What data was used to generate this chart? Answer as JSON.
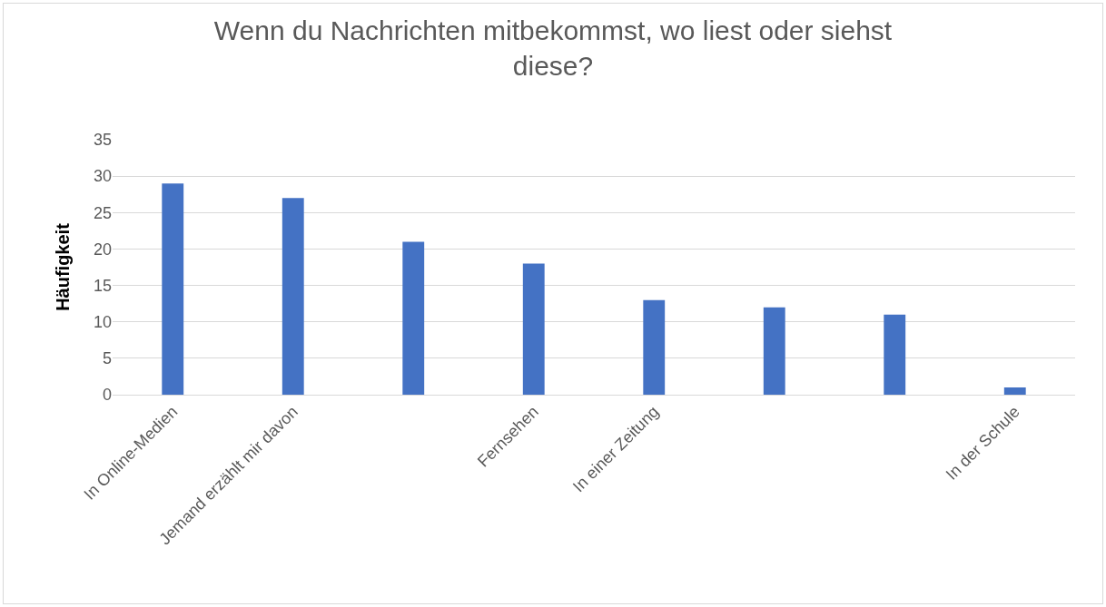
{
  "chart_data": {
    "type": "bar",
    "title": "Wenn du Nachrichten mitbekommst, wo liest oder siehst diese?",
    "ylabel": "Häufigkeit",
    "categories": [
      "In Online-Medien",
      "Jemand erzählt mir davon",
      null,
      "Fernsehen",
      "In einer Zeitung",
      null,
      null,
      "In der Schule"
    ],
    "values": [
      29,
      27,
      21,
      18,
      13,
      12,
      11,
      1
    ],
    "color": "#4472c4",
    "ylim": [
      0,
      35
    ],
    "yticks": [
      0,
      5,
      10,
      15,
      20,
      25,
      30,
      35
    ],
    "grid": "y",
    "legend": false
  }
}
